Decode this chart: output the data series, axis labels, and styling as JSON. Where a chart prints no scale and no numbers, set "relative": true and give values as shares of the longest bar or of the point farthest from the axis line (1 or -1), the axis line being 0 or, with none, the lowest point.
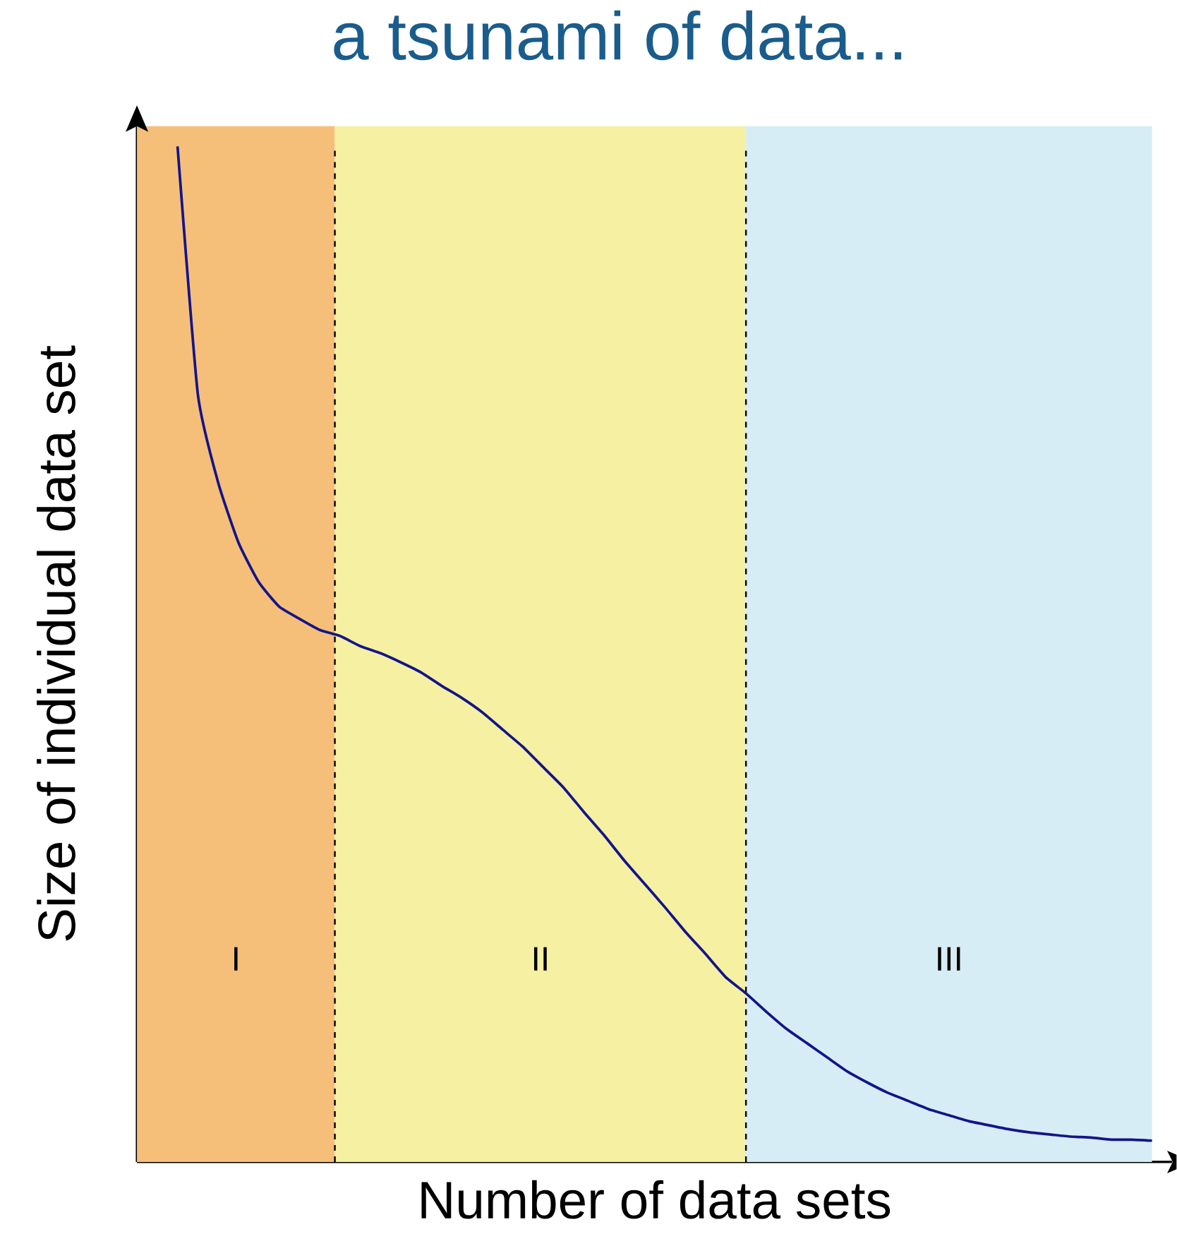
{
  "chart_data": {
    "type": "line",
    "title": "a tsunami of data...",
    "xlabel": "Number of data sets",
    "ylabel": "Size of individual data set",
    "relative": true,
    "categories": [
      null,
      null,
      null,
      null,
      null,
      null,
      null,
      null,
      null,
      null,
      null,
      null,
      null,
      null,
      null,
      null,
      null,
      null,
      null,
      null,
      null,
      null,
      null,
      null,
      null,
      null,
      null,
      null,
      null,
      null,
      null,
      null,
      null,
      null,
      null,
      null,
      null,
      null,
      null,
      null,
      null,
      null,
      null,
      null,
      null,
      null,
      null,
      null,
      null,
      null,
      null
    ],
    "color": "#14148a",
    "values": [
      null,
      null,
      1,
      0.756,
      0.669,
      0.61,
      0.571,
      0.547,
      0.535,
      0.524,
      0.518,
      0.508,
      0.501,
      0.492,
      0.482,
      0.469,
      0.457,
      0.443,
      0.426,
      0.409,
      0.389,
      0.369,
      0.345,
      0.322,
      0.297,
      0.274,
      0.251,
      0.227,
      0.205,
      0.182,
      0.166,
      0.148,
      0.131,
      0.117,
      0.103,
      0.089,
      0.078,
      0.068,
      0.06,
      0.052,
      0.046,
      0.04,
      0.036,
      0.032,
      0.029,
      0.027,
      0.025,
      0.024,
      0.022,
      0.022,
      0.021
    ],
    "annotations": [
      "I",
      "II",
      "III"
    ]
  }
}
